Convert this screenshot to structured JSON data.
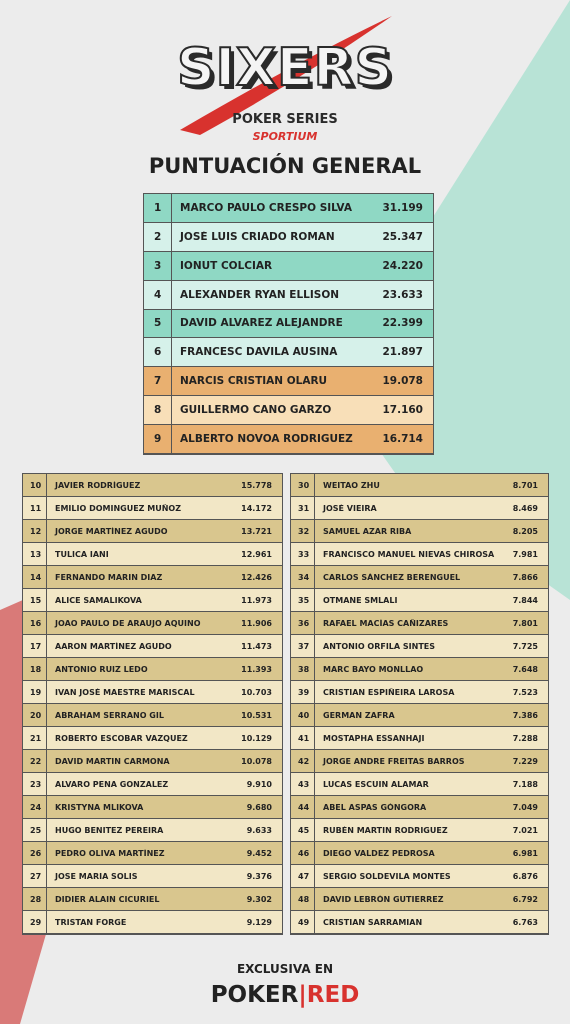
{
  "logo": {
    "title": "SIXERS",
    "subtitle": "POKER SERIES",
    "sponsor": "SPORTIUM"
  },
  "heading": "PUNTUACIÓN GENERAL",
  "top_table": {
    "rows": [
      [
        "1",
        "MARCO PAULO CRESPO SILVA",
        "31.199"
      ],
      [
        "2",
        "JOSÉ LUIS CRIADO ROMAN",
        "25.347"
      ],
      [
        "3",
        "IONUT COLCIAR",
        "24.220"
      ],
      [
        "4",
        "ALEXANDER RYAN ELLISON",
        "23.633"
      ],
      [
        "5",
        "DAVID ALVAREZ ALEJANDRE",
        "22.399"
      ],
      [
        "6",
        "FRANCESC DAVILA AUSINA",
        "21.897"
      ],
      [
        "7",
        "NARCIS CRISTIAN OLARU",
        "19.078"
      ],
      [
        "8",
        "GUILLERMO CANO GARZO",
        "17.160"
      ],
      [
        "9",
        "ALBERTO NOVOA RODRIGUEZ",
        "16.714"
      ]
    ]
  },
  "left_table": {
    "rows": [
      [
        "10",
        "JAVIER RODRÍGUEZ",
        "15.778"
      ],
      [
        "11",
        "EMILIO DOMINGUEZ MUÑOZ",
        "14.172"
      ],
      [
        "12",
        "JORGE MARTÍNEZ AGUDO",
        "13.721"
      ],
      [
        "13",
        "TULICA IANI",
        "12.961"
      ],
      [
        "14",
        "FERNANDO MARIN DIAZ",
        "12.426"
      ],
      [
        "15",
        "ALICE SAMALIKOVA",
        "11.973"
      ],
      [
        "16",
        "JOAO PAULO DE ARAUJO AQUINO",
        "11.906"
      ],
      [
        "17",
        "AARON MARTÍNEZ AGUDO",
        "11.473"
      ],
      [
        "18",
        "ANTONIO RUIZ LEDO",
        "11.393"
      ],
      [
        "19",
        "IVAN JOSÉ MAESTRE MARISCAL",
        "10.703"
      ],
      [
        "20",
        "ABRAHAM SERRANO GIL",
        "10.531"
      ],
      [
        "21",
        "ROBERTO ESCOBAR VAZQUEZ",
        "10.129"
      ],
      [
        "22",
        "DAVID MARTIN CARMONA",
        "10.078"
      ],
      [
        "23",
        "ALVARO PENA GONZALEZ",
        "9.910"
      ],
      [
        "24",
        "KRISTYNA MLIKOVA",
        "9.680"
      ],
      [
        "25",
        "HUGO BENITEZ PEREIRA",
        "9.633"
      ],
      [
        "26",
        "PEDRO OLIVA MARTÍNEZ",
        "9.452"
      ],
      [
        "27",
        "JOSE MARIA SOLIS",
        "9.376"
      ],
      [
        "28",
        "DIDIER ALAIN CICURIEL",
        "9.302"
      ],
      [
        "29",
        "TRISTAN FORGE",
        "9.129"
      ]
    ]
  },
  "right_table": {
    "rows": [
      [
        "30",
        "WEITAO ZHU",
        "8.701"
      ],
      [
        "31",
        "JOSÉ VIEIRA",
        "8.469"
      ],
      [
        "32",
        "SAMUEL AZAR RIBA",
        "8.205"
      ],
      [
        "33",
        "FRANCISCO MANUEL NIEVAS CHIROSA",
        "7.981"
      ],
      [
        "34",
        "CARLOS SÁNCHEZ BERENGUEL",
        "7.866"
      ],
      [
        "35",
        "OTMANE SMLALI",
        "7.844"
      ],
      [
        "36",
        "RAFAEL MACÍAS CAÑIZARES",
        "7.801"
      ],
      [
        "37",
        "ANTONIO ORFILA SINTES",
        "7.725"
      ],
      [
        "38",
        "MARC BAYO MONLLAO",
        "7.648"
      ],
      [
        "39",
        "CRISTIAN ESPIÑEIRA LAROSA",
        "7.523"
      ],
      [
        "40",
        "GERMAN ZAFRA",
        "7.386"
      ],
      [
        "41",
        "MOSTAPHA ESSANHAJI",
        "7.288"
      ],
      [
        "42",
        "JORGE ANDRE FREITAS BARROS",
        "7.229"
      ],
      [
        "43",
        "LUCAS ESCUIN ALAMAR",
        "7.188"
      ],
      [
        "44",
        "ABEL ASPAS GÓNGORA",
        "7.049"
      ],
      [
        "45",
        "RUBÉN MARTIN RODRIGUEZ",
        "7.021"
      ],
      [
        "46",
        "DIEGO VALDEZ PEDROSA",
        "6.981"
      ],
      [
        "47",
        "SERGIO SOLDEVILA MONTES",
        "6.876"
      ],
      [
        "48",
        "DAVID LEBRÓN GUTIERREZ",
        "6.792"
      ],
      [
        "49",
        "CRISTIAN SARRAMIAN",
        "6.763"
      ]
    ]
  },
  "footer": {
    "caption": "EXCLUSIVA EN",
    "brand_left": "POKER",
    "brand_right": "RED"
  }
}
